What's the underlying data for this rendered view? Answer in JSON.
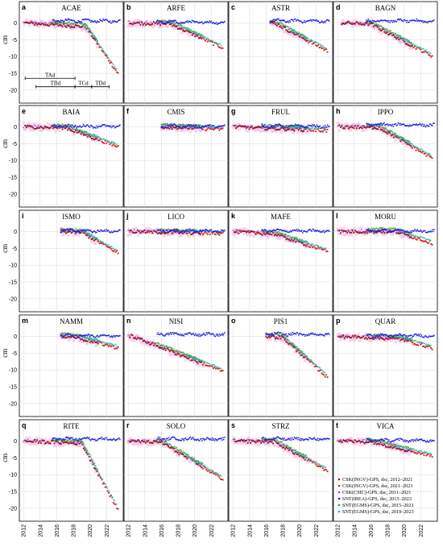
{
  "chart_data": {
    "type": "scatter",
    "layout": "5x4 small multiples",
    "ylabel": "cm",
    "ylim": [
      -21,
      3
    ],
    "xlim": [
      2011.5,
      2024
    ],
    "yticks": [
      0,
      -5,
      -10,
      -15,
      -20
    ],
    "xticks": [
      2012,
      2014,
      2016,
      2018,
      2020,
      2022
    ],
    "grid": true,
    "legend": {
      "position": "bottom-right of panel t",
      "entries": [
        {
          "name": "CSK(INGV)-GPS, dsc, 2012–2021",
          "color": "#8b1a1a"
        },
        {
          "name": "CSK(INGV)-GPS, dsc, 2021–2023",
          "color": "#e02020"
        },
        {
          "name": "CSK(CSIC)-GPS, dsc, 2011–2021",
          "color": "#b040e0"
        },
        {
          "name": "SNT(IREA)-GPS, dsc, 2015–2023",
          "color": "#2020e0"
        },
        {
          "name": "SNT(EGMS)-GPS, dsc, 2015–2021",
          "color": "#20b020"
        },
        {
          "name": "SNT(EGMS)-GPS, dsc, 2019–2023",
          "color": "#30b8a8"
        }
      ]
    },
    "annotations": {
      "panel": "a",
      "bars": [
        {
          "label": "TAd",
          "start": 2012.2,
          "end": 2018.2,
          "y": -16.5
        },
        {
          "label": "TBd",
          "start": 2013.5,
          "end": 2018.2,
          "y": -19
        },
        {
          "label": "TCd",
          "start": 2018.2,
          "end": 2020.2,
          "y": -19
        },
        {
          "label": "TDd",
          "start": 2020.2,
          "end": 2022.3,
          "y": -19
        }
      ]
    },
    "panels": [
      {
        "letter": "a",
        "title": "ACAE",
        "start": 2012.0,
        "breakYear": 2019.5,
        "rate1": -0.15,
        "rate2": -3.3,
        "final": -15.5
      },
      {
        "letter": "b",
        "title": "ARFE",
        "start": 2012.0,
        "breakYear": 2017.0,
        "rate1": -0.05,
        "rate2": -1.2,
        "final": -7.5
      },
      {
        "letter": "c",
        "title": "ASTR",
        "start": 2016.5,
        "breakYear": 2017.0,
        "rate1": 0.0,
        "rate2": -1.5,
        "final": -8.5
      },
      {
        "letter": "d",
        "title": "BAGN",
        "start": 2012.5,
        "breakYear": 2016.0,
        "rate1": -0.1,
        "rate2": -1.2,
        "final": -10.0
      },
      {
        "letter": "e",
        "title": "BAIA",
        "start": 2012.0,
        "breakYear": 2017.0,
        "rate1": -0.05,
        "rate2": -0.8,
        "final": -6.0
      },
      {
        "letter": "f",
        "title": "CMIS",
        "start": 2016.0,
        "breakYear": 2024.0,
        "rate1": -0.1,
        "rate2": -0.1,
        "final": -1.5
      },
      {
        "letter": "g",
        "title": "FRUL",
        "start": 2012.0,
        "breakYear": 2024.0,
        "rate1": -0.1,
        "rate2": -0.1,
        "final": -1.2
      },
      {
        "letter": "h",
        "title": "IPPO",
        "start": 2012.0,
        "breakYear": 2017.0,
        "rate1": -0.05,
        "rate2": -1.3,
        "final": -9.5
      },
      {
        "letter": "i",
        "title": "ISMO",
        "start": 2016.5,
        "breakYear": 2019.0,
        "rate1": -0.1,
        "rate2": -1.4,
        "final": -6.5
      },
      {
        "letter": "j",
        "title": "LICO",
        "start": 2012.0,
        "breakYear": 2024.0,
        "rate1": -0.05,
        "rate2": -0.05,
        "final": -0.5
      },
      {
        "letter": "k",
        "title": "MAFE",
        "start": 2012.0,
        "breakYear": 2017.0,
        "rate1": -0.15,
        "rate2": -0.7,
        "final": -6.0
      },
      {
        "letter": "l",
        "title": "MORU",
        "start": 2012.0,
        "breakYear": 2019.0,
        "rate1": 0.0,
        "rate2": -0.7,
        "final": -3.5
      },
      {
        "letter": "m",
        "title": "NAMM",
        "start": 2016.5,
        "breakYear": 2018.0,
        "rate1": -0.1,
        "rate2": -0.6,
        "final": -3.5
      },
      {
        "letter": "n",
        "title": "NISI",
        "start": 2012.0,
        "breakYear": 2012.5,
        "rate1": 0.0,
        "rate2": -1.2,
        "final": -10.5
      },
      {
        "letter": "o",
        "title": "PIS1",
        "start": 2016.0,
        "breakYear": 2018.0,
        "rate1": -0.2,
        "rate2": -2.2,
        "final": -12.5
      },
      {
        "letter": "p",
        "title": "QUAR",
        "start": 2012.0,
        "breakYear": 2019.5,
        "rate1": -0.1,
        "rate2": -0.8,
        "final": -3.5
      },
      {
        "letter": "q",
        "title": "RITE",
        "start": 2012.0,
        "breakYear": 2019.0,
        "rate1": -0.1,
        "rate2": -4.3,
        "final": -21.0
      },
      {
        "letter": "r",
        "title": "SOLO",
        "start": 2012.0,
        "breakYear": 2016.0,
        "rate1": -0.1,
        "rate2": -1.6,
        "final": -11.5
      },
      {
        "letter": "s",
        "title": "STRZ",
        "start": 2012.0,
        "breakYear": 2017.0,
        "rate1": -0.05,
        "rate2": -1.3,
        "final": -9.0
      },
      {
        "letter": "t",
        "title": "VICA",
        "start": 2012.0,
        "breakYear": 2016.0,
        "rate1": -0.05,
        "rate2": -0.55,
        "final": -4.5
      }
    ]
  }
}
